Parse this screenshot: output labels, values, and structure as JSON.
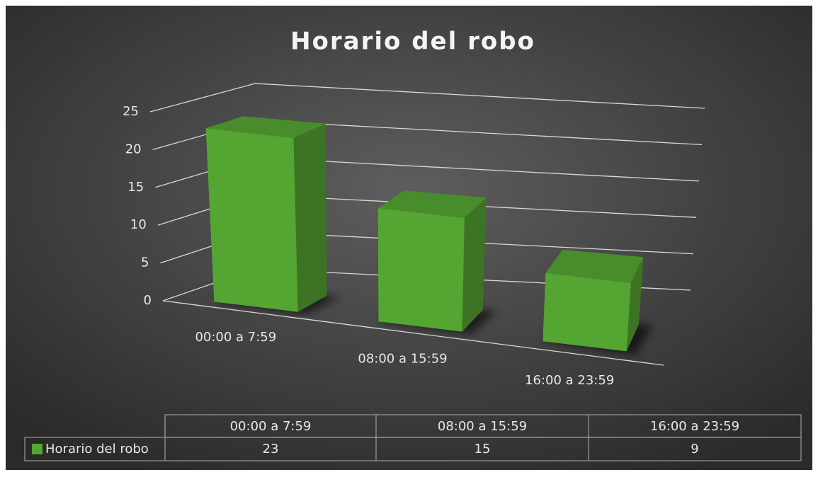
{
  "chart_data": {
    "type": "bar3d",
    "title": "Horario del robo",
    "categories": [
      "00:00 a 7:59",
      "08:00 a 15:59",
      "16:00 a 23:59"
    ],
    "series": [
      {
        "name": "Horario del robo",
        "color": "#55a532",
        "values": [
          23,
          15,
          9
        ]
      }
    ],
    "ylim": [
      0,
      25
    ],
    "yticks": [
      0,
      5,
      10,
      15,
      20,
      25
    ],
    "grid": true,
    "data_table": true
  }
}
